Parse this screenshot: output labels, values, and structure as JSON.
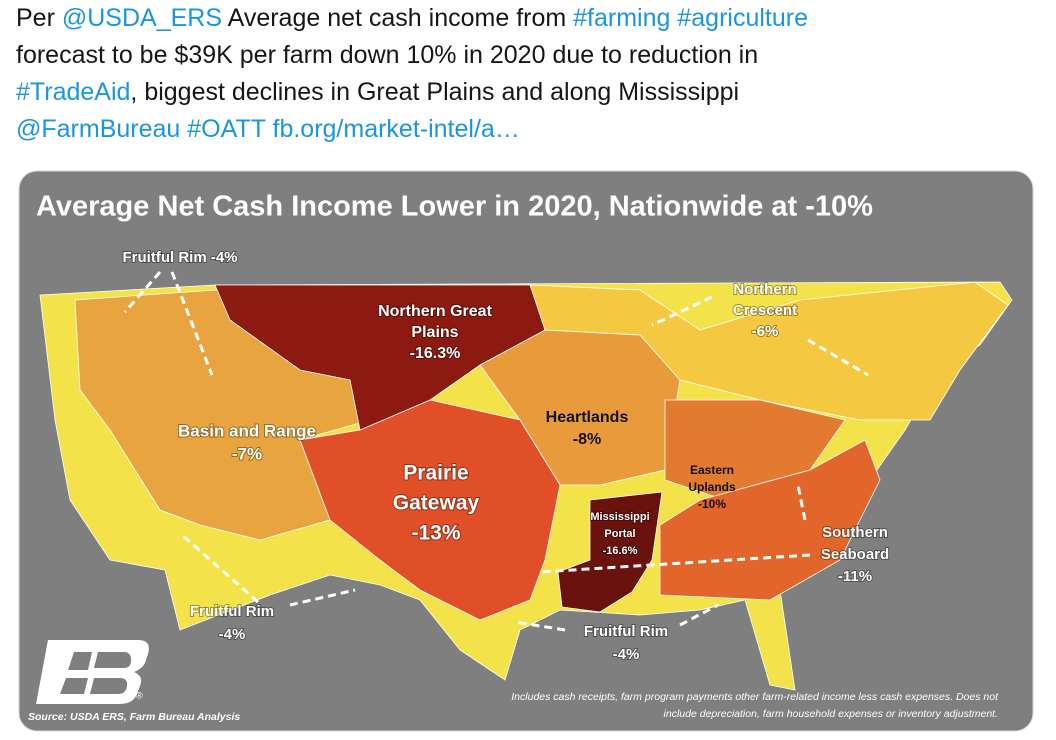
{
  "tweet": {
    "lines": [
      [
        "Per",
        "@USDA_ERS",
        "Average net cash income from",
        "#farming",
        "#agriculture"
      ],
      [
        "forecast to be $39K per farm down 10% in 2020 due to reduction in"
      ],
      [
        "#TradeAid",
        ", biggest declines in Great Plains and along Mississippi"
      ],
      [
        "@FarmBureau",
        "#OATT",
        "fb.org/market-intel/a…"
      ]
    ]
  },
  "map": {
    "title": "Average Net Cash Income Lower in 2020, Nationwide at -10%",
    "regions": [
      {
        "lines": [
          "Fruitful Rim -4%"
        ]
      },
      {
        "lines": [
          "Northern Great",
          "Plains",
          "-16.3%"
        ]
      },
      {
        "lines": [
          "Northern",
          "Crescent",
          "-6%"
        ]
      },
      {
        "lines": [
          "Basin and Range",
          "-7%"
        ]
      },
      {
        "lines": [
          "Heartlands",
          "-8%"
        ]
      },
      {
        "lines": [
          "Prairie",
          "Gateway",
          "-13%"
        ]
      },
      {
        "lines": [
          "Eastern",
          "Uplands",
          "-10%"
        ]
      },
      {
        "lines": [
          "Mississippi",
          "Portal",
          "-16.6%"
        ]
      },
      {
        "lines": [
          "Southern",
          "Seaboard",
          "-11%"
        ]
      },
      {
        "lines": [
          "Fruitful Rim",
          "-4%"
        ]
      },
      {
        "lines": [
          "Fruitful Rim",
          "-4%"
        ]
      }
    ],
    "source": "Source: USDA ERS, Farm Bureau Analysis",
    "note": [
      "Includes cash receipts, farm program payments other farm-related income less cash expenses. Does not",
      "include depreciation, farm household expenses or inventory adjustment."
    ],
    "logo_mark": "®"
  }
}
